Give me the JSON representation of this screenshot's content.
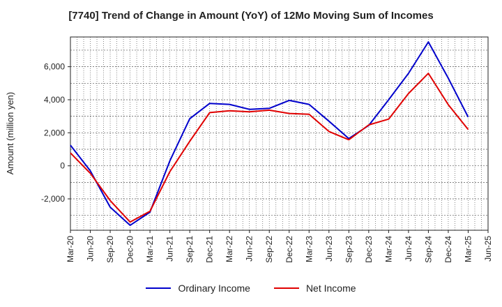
{
  "chart_data": {
    "type": "line",
    "title": "[7740]  Trend of Change in Amount (YoY) of 12Mo Moving Sum of Incomes",
    "ylabel": "Amount (million yen)",
    "xlabel": "",
    "ylim": [
      -3900,
      7800
    ],
    "yticks": [
      -2000,
      0,
      2000,
      4000,
      6000
    ],
    "ytick_labels": [
      "-2,000",
      "0",
      "2,000",
      "4,000",
      "6,000"
    ],
    "x": [
      "Mar-20",
      "Jun-20",
      "Sep-20",
      "Dec-20",
      "Mar-21",
      "Jun-21",
      "Sep-21",
      "Dec-21",
      "Mar-22",
      "Jun-22",
      "Sep-22",
      "Dec-22",
      "Mar-23",
      "Jun-23",
      "Sep-23",
      "Dec-23",
      "Mar-24",
      "Jun-24",
      "Sep-24",
      "Dec-24",
      "Mar-25",
      "Jun-25"
    ],
    "grid": true,
    "legend_position": "bottom",
    "series": [
      {
        "name": "Ordinary Income",
        "color": "#0000cc",
        "values": [
          1250,
          -300,
          -2500,
          -3600,
          -2800,
          300,
          2850,
          3780,
          3720,
          3420,
          3480,
          3960,
          3720,
          2700,
          1650,
          2450,
          4000,
          5600,
          7500,
          5300,
          2950,
          null
        ]
      },
      {
        "name": "Net Income",
        "color": "#e00000",
        "values": [
          780,
          -450,
          -2100,
          -3400,
          -2750,
          -350,
          1480,
          3220,
          3330,
          3270,
          3370,
          3170,
          3120,
          2080,
          1580,
          2480,
          2830,
          4380,
          5600,
          3700,
          2200,
          null
        ]
      }
    ]
  }
}
